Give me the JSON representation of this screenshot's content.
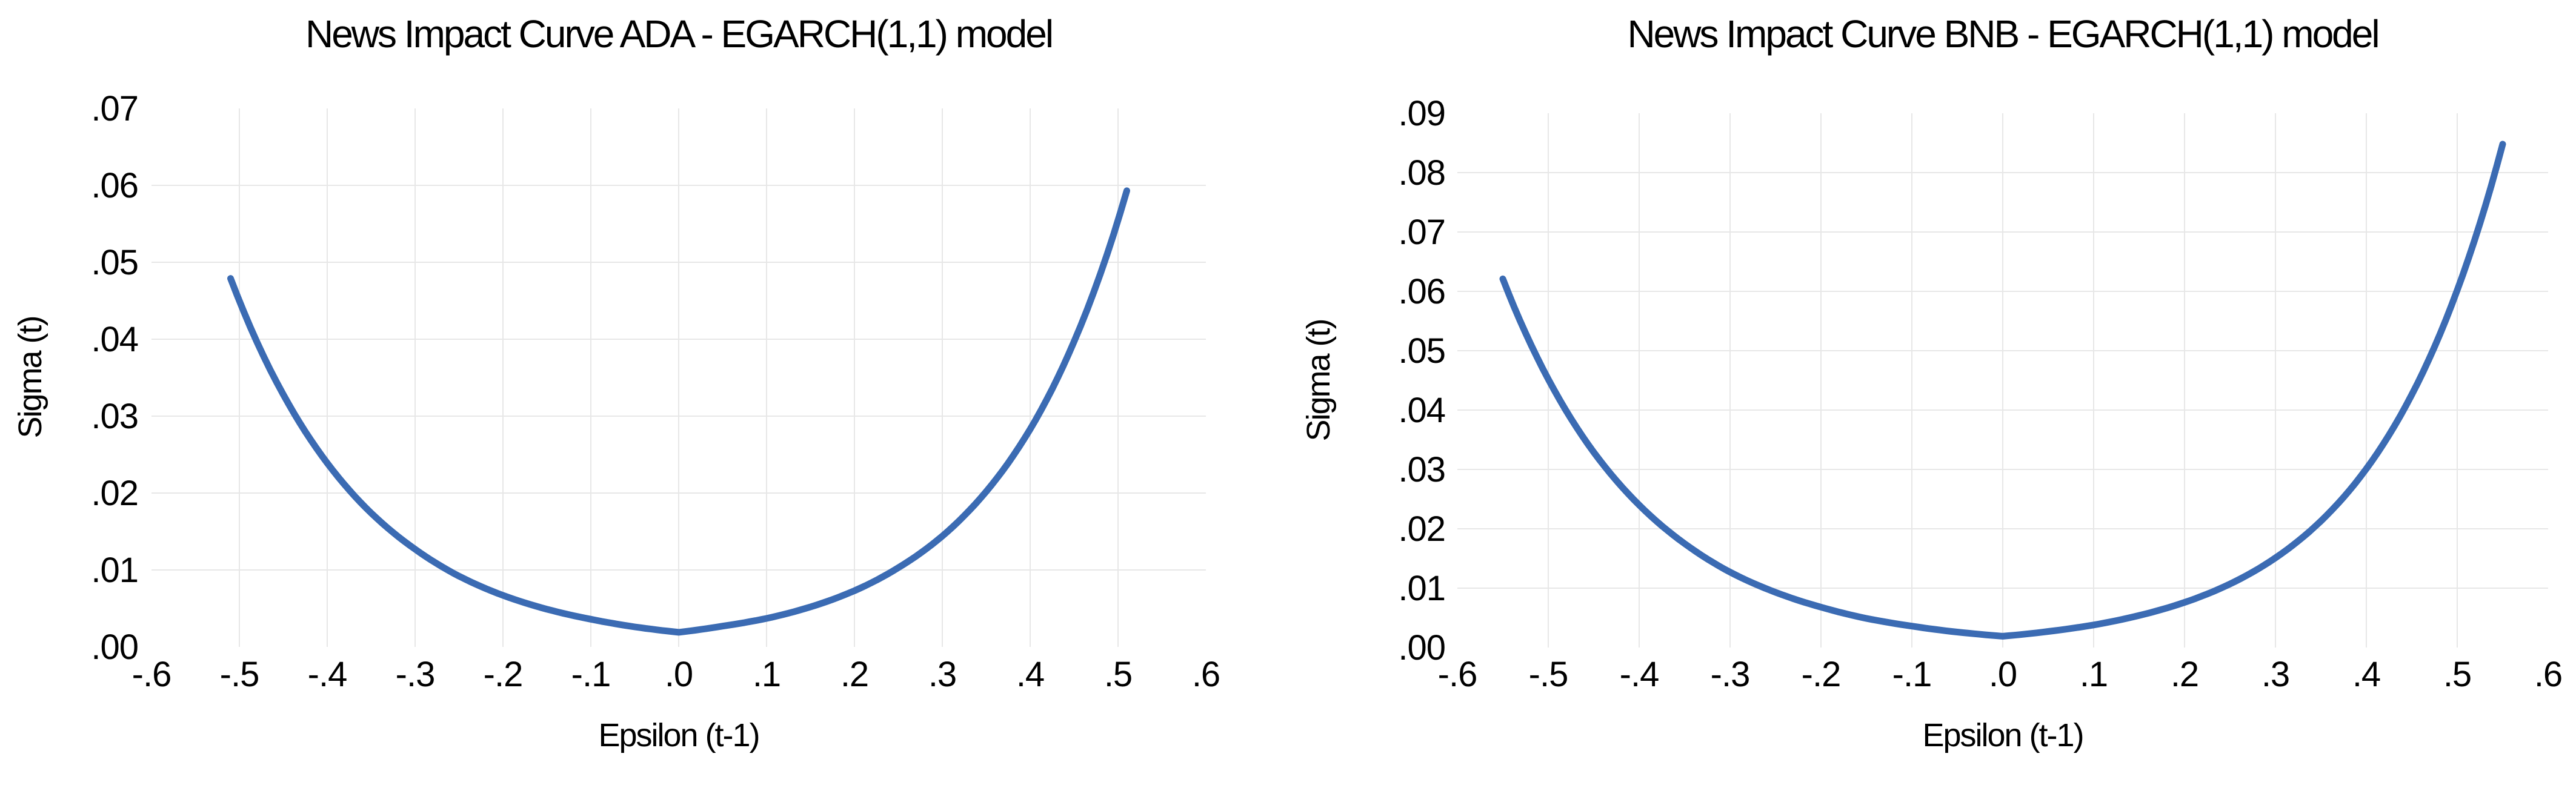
{
  "page": {
    "background": "#ffffff",
    "text_color": "#000000",
    "grid_color": "#e7e7e7",
    "curve_color": "#3b6bb3"
  },
  "chart_data": [
    {
      "type": "line",
      "title": "News Impact Curve ADA - EGARCH(1,1) model",
      "xlabel": "Epsilon (t-1)",
      "ylabel": "Sigma (t)",
      "legend_position": "none",
      "grid": true,
      "line_color": "#3b6bb3",
      "xlim": [
        -0.6,
        0.6
      ],
      "ylim": [
        0,
        0.07
      ],
      "x_tick_values": [
        -0.6,
        -0.5,
        -0.4,
        -0.3,
        -0.2,
        -0.1,
        0.0,
        0.1,
        0.2,
        0.3,
        0.4,
        0.5,
        0.6
      ],
      "x_tick_labels": [
        "-.6",
        "-.5",
        "-.4",
        "-.3",
        "-.2",
        "-.1",
        ".0",
        ".1",
        ".2",
        ".3",
        ".4",
        ".5",
        ".6"
      ],
      "y_tick_values": [
        0.0,
        0.01,
        0.02,
        0.03,
        0.04,
        0.05,
        0.06,
        0.07
      ],
      "y_tick_labels": [
        ".00",
        ".01",
        ".02",
        ".03",
        ".04",
        ".05",
        ".06",
        ".07"
      ],
      "x": [
        -0.51,
        -0.45,
        -0.4,
        -0.35,
        -0.3,
        -0.25,
        -0.2,
        -0.15,
        -0.1,
        -0.05,
        0.0,
        0.05,
        0.1,
        0.15,
        0.2,
        0.25,
        0.3,
        0.35,
        0.4,
        0.45,
        0.51
      ],
      "y": [
        0.0479,
        0.0328,
        0.0239,
        0.0174,
        0.0127,
        0.0092,
        0.0067,
        0.0049,
        0.0036,
        0.0026,
        0.0019,
        0.0027,
        0.0037,
        0.0052,
        0.0073,
        0.0103,
        0.0144,
        0.0202,
        0.0283,
        0.0397,
        0.0593
      ]
    },
    {
      "type": "line",
      "title": "News Impact Curve BNB - EGARCH(1,1) model",
      "xlabel": "Epsilon (t-1)",
      "ylabel": "Sigma (t)",
      "legend_position": "none",
      "grid": true,
      "line_color": "#3b6bb3",
      "xlim": [
        -0.6,
        0.6
      ],
      "ylim": [
        0,
        0.09
      ],
      "x_tick_values": [
        -0.6,
        -0.5,
        -0.4,
        -0.3,
        -0.2,
        -0.1,
        0.0,
        0.1,
        0.2,
        0.3,
        0.4,
        0.5,
        0.6
      ],
      "x_tick_labels": [
        "-.6",
        "-.5",
        "-.4",
        "-.3",
        "-.2",
        "-.1",
        ".0",
        ".1",
        ".2",
        ".3",
        ".4",
        ".5",
        ".6"
      ],
      "y_tick_values": [
        0.0,
        0.01,
        0.02,
        0.03,
        0.04,
        0.05,
        0.06,
        0.07,
        0.08,
        0.09
      ],
      "y_tick_labels": [
        ".00",
        ".01",
        ".02",
        ".03",
        ".04",
        ".05",
        ".06",
        ".07",
        ".08",
        ".09"
      ],
      "x": [
        -0.55,
        -0.5,
        -0.45,
        -0.4,
        -0.35,
        -0.3,
        -0.25,
        -0.2,
        -0.15,
        -0.1,
        -0.05,
        0.0,
        0.05,
        0.1,
        0.15,
        0.2,
        0.25,
        0.3,
        0.35,
        0.4,
        0.45,
        0.5,
        0.55
      ],
      "y": [
        0.0621,
        0.0452,
        0.0329,
        0.024,
        0.0175,
        0.0127,
        0.0093,
        0.0068,
        0.0049,
        0.0036,
        0.0026,
        0.0019,
        0.0027,
        0.0038,
        0.0054,
        0.0076,
        0.0107,
        0.0151,
        0.0213,
        0.0301,
        0.0426,
        0.0602,
        0.0848
      ]
    }
  ]
}
